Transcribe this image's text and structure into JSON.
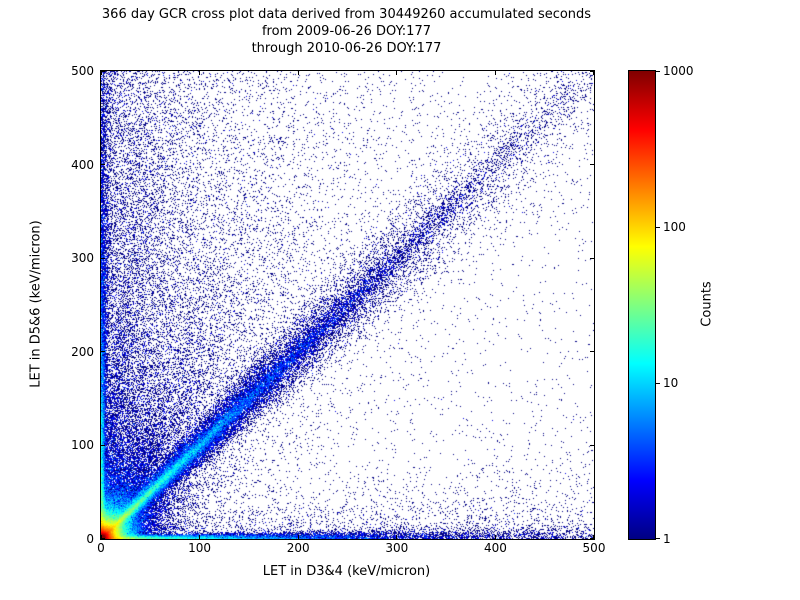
{
  "chart_data": {
    "type": "heatmap",
    "title_lines": [
      "366 day GCR cross plot data derived from 30449260 accumulated seconds",
      "from 2009-06-26 DOY:177",
      "through 2010-06-26 DOY:177"
    ],
    "xlabel": "LET in D3&4 (keV/micron)",
    "ylabel": "LET in D5&6 (keV/micron)",
    "xlim": [
      0,
      500
    ],
    "ylim": [
      0,
      500
    ],
    "xticks": [
      0,
      100,
      200,
      300,
      400,
      500
    ],
    "yticks": [
      0,
      100,
      200,
      300,
      400,
      500
    ],
    "grid": false,
    "colorbar": {
      "label": "Counts",
      "scale": "log",
      "min": 1,
      "max": 1000,
      "ticks": [
        1,
        10,
        100,
        1000
      ]
    },
    "colormap": {
      "name": "jet",
      "stops": [
        [
          0.0,
          "#000083"
        ],
        [
          0.125,
          "#0000ff"
        ],
        [
          0.375,
          "#00ffff"
        ],
        [
          0.625,
          "#ffff00"
        ],
        [
          0.875,
          "#ff0000"
        ],
        [
          1.0,
          "#800000"
        ]
      ]
    },
    "features": [
      {
        "name": "origin-hotspot",
        "desc": "very dense core near (0,0) reaching ~1000 counts, jet rings outward",
        "type": "blob",
        "cx": 2,
        "cy": 2,
        "scale": 10,
        "points": 70000,
        "weight": 1
      },
      {
        "name": "origin-halo",
        "desc": "sparse halo of hits around origin",
        "type": "blob",
        "cx": 2,
        "cy": 2,
        "scale": 30,
        "points": 12000,
        "weight": 1
      },
      {
        "name": "coincidence-diagonal",
        "desc": "main y=x band, cyan near origin fading and widening outward",
        "type": "ray",
        "x0": 0,
        "y0": 0,
        "angle": 45,
        "mean_len": 180,
        "max_len": 707,
        "width0": 1.5,
        "width_growth": 0.045,
        "points": 30000,
        "weight": 1
      },
      {
        "name": "diagonal-core",
        "desc": "tight core of the y=x band",
        "type": "ray",
        "x0": 0,
        "y0": 0,
        "angle": 45,
        "mean_len": 220,
        "max_len": 707,
        "width0": 0.8,
        "width_growth": 0.012,
        "points": 12000,
        "weight": 1
      },
      {
        "name": "left-edge-band",
        "desc": "band hugging the y axis (low LET in D3&4)",
        "type": "ray",
        "x0": 1,
        "y0": 0,
        "angle": 90,
        "mean_len": 160,
        "max_len": 500,
        "width0": 1.2,
        "width_growth": 0.008,
        "points": 10000,
        "weight": 1
      },
      {
        "name": "bottom-edge-band",
        "desc": "band hugging the x axis (low LET in D5&6)",
        "type": "ray",
        "x0": 0,
        "y0": 1,
        "angle": 0,
        "mean_len": 140,
        "max_len": 500,
        "width0": 1.2,
        "width_growth": 0.01,
        "points": 11000,
        "weight": 1
      },
      {
        "name": "fan-wedge-above-diagonal",
        "type": "ray",
        "x0": 0,
        "y0": 0,
        "angle": 52,
        "mean_len": 90,
        "max_len": 500,
        "width0": 1,
        "width_growth": 0.15,
        "points": 4000,
        "weight": 1
      },
      {
        "name": "fan-ray-slope-1.75",
        "type": "ray",
        "x0": 0,
        "y0": 0,
        "angle": 60.3,
        "mean_len": 150,
        "max_len": 600,
        "width0": 1,
        "width_growth": 0.06,
        "points": 3000,
        "weight": 1
      },
      {
        "name": "fan-ray-slope-2.5",
        "type": "ray",
        "x0": 0,
        "y0": 0,
        "angle": 68.2,
        "mean_len": 170,
        "max_len": 600,
        "width0": 1,
        "width_growth": 0.05,
        "points": 3000,
        "weight": 1
      },
      {
        "name": "fan-ray-slope-4",
        "type": "ray",
        "x0": 0,
        "y0": 0,
        "angle": 76,
        "mean_len": 200,
        "max_len": 550,
        "width0": 1,
        "width_growth": 0.04,
        "points": 2800,
        "weight": 1
      },
      {
        "name": "fan-ray-slope-7",
        "type": "ray",
        "x0": 0,
        "y0": 0,
        "angle": 81.9,
        "mean_len": 250,
        "max_len": 520,
        "width0": 1,
        "width_growth": 0.03,
        "points": 2600,
        "weight": 1
      },
      {
        "name": "fan-ray-slope-12",
        "type": "ray",
        "x0": 0,
        "y0": 0,
        "angle": 85.2,
        "mean_len": 260,
        "max_len": 520,
        "width0": 1,
        "width_growth": 0.025,
        "points": 2400,
        "weight": 1
      },
      {
        "name": "fan-ray-below-diagonal",
        "type": "ray",
        "x0": 0,
        "y0": 0,
        "angle": 30,
        "mean_len": 80,
        "max_len": 400,
        "width0": 1,
        "width_growth": 0.08,
        "points": 1500,
        "weight": 1
      },
      {
        "name": "upper-left-diffuse",
        "desc": "scattered hits above the diagonal, denser toward low D3&4 LET",
        "type": "scatter",
        "x_dist": "exp",
        "x_param": 100,
        "y_dist": "uniform",
        "region": "above-diagonal",
        "points": 9000,
        "weight": 1
      },
      {
        "name": "background-sparse",
        "desc": "isolated single-count hits over whole plane",
        "type": "scatter",
        "x_dist": "uniform",
        "y_dist": "uniform",
        "region": "all",
        "points": 2600,
        "weight": 1
      },
      {
        "name": "bottom-scatter",
        "type": "scatter",
        "x_dist": "uniform",
        "y_dist": "exp",
        "y_param": 25,
        "region": "all",
        "points": 2600,
        "weight": 1
      },
      {
        "name": "left-scatter",
        "type": "scatter",
        "x_dist": "exp",
        "x_param": 18,
        "y_dist": "uniform",
        "region": "all",
        "points": 2200,
        "weight": 1
      }
    ]
  }
}
